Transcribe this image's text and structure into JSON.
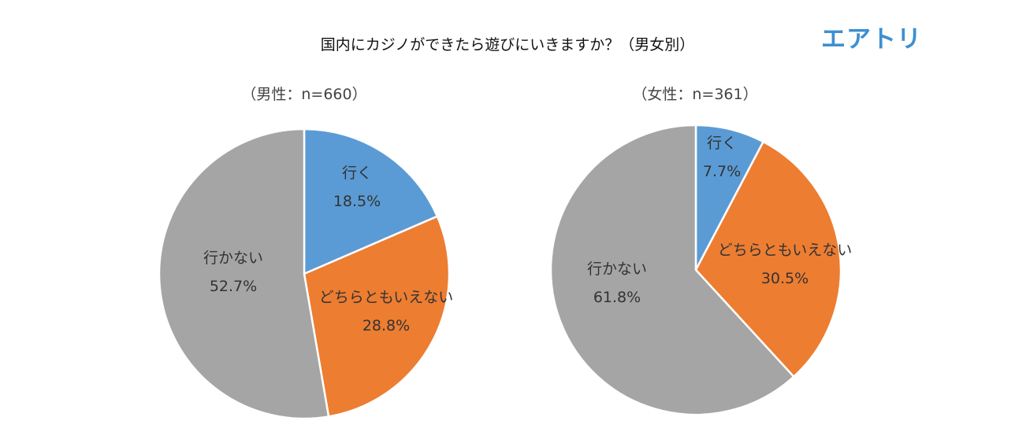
{
  "header": {
    "title": "国内にカジノができたら遊びにいきますか？（男女別）",
    "logo_text": "エアトリ"
  },
  "chart_data": [
    {
      "type": "pie",
      "subtitle": "（男性：n=660）",
      "slices": [
        {
          "label": "行く",
          "value": 18.5,
          "value_text": "18.5%",
          "color": "#5b9bd5"
        },
        {
          "label": "どちらともいえない",
          "value": 28.8,
          "value_text": "28.8%",
          "color": "#ed7d31"
        },
        {
          "label": "行かない",
          "value": 52.7,
          "value_text": "52.7%",
          "color": "#a5a5a5"
        }
      ]
    },
    {
      "type": "pie",
      "subtitle": "（女性：n=361）",
      "slices": [
        {
          "label": "行く",
          "value": 7.7,
          "value_text": "7.7%",
          "color": "#5b9bd5"
        },
        {
          "label": "どちらともいえない",
          "value": 30.5,
          "value_text": "30.5%",
          "color": "#ed7d31"
        },
        {
          "label": "行かない",
          "value": 61.8,
          "value_text": "61.8%",
          "color": "#a5a5a5"
        }
      ]
    }
  ]
}
